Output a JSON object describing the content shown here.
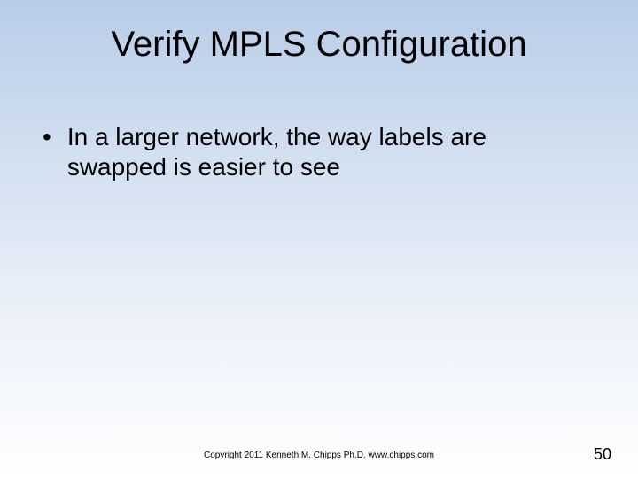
{
  "slide": {
    "title": "Verify MPLS Configuration",
    "bullets": [
      {
        "text": "In a larger network, the way labels are swapped is easier to see"
      }
    ],
    "footer_copyright": "Copyright 2011 Kenneth M. Chipps Ph.D. www.chipps.com",
    "page_number": "50",
    "background_gradient_start": "#b8cde8",
    "background_gradient_end": "#ffffff",
    "title_fontsize": 40,
    "body_fontsize": 28,
    "footer_fontsize": 10,
    "pagenum_fontsize": 18
  }
}
